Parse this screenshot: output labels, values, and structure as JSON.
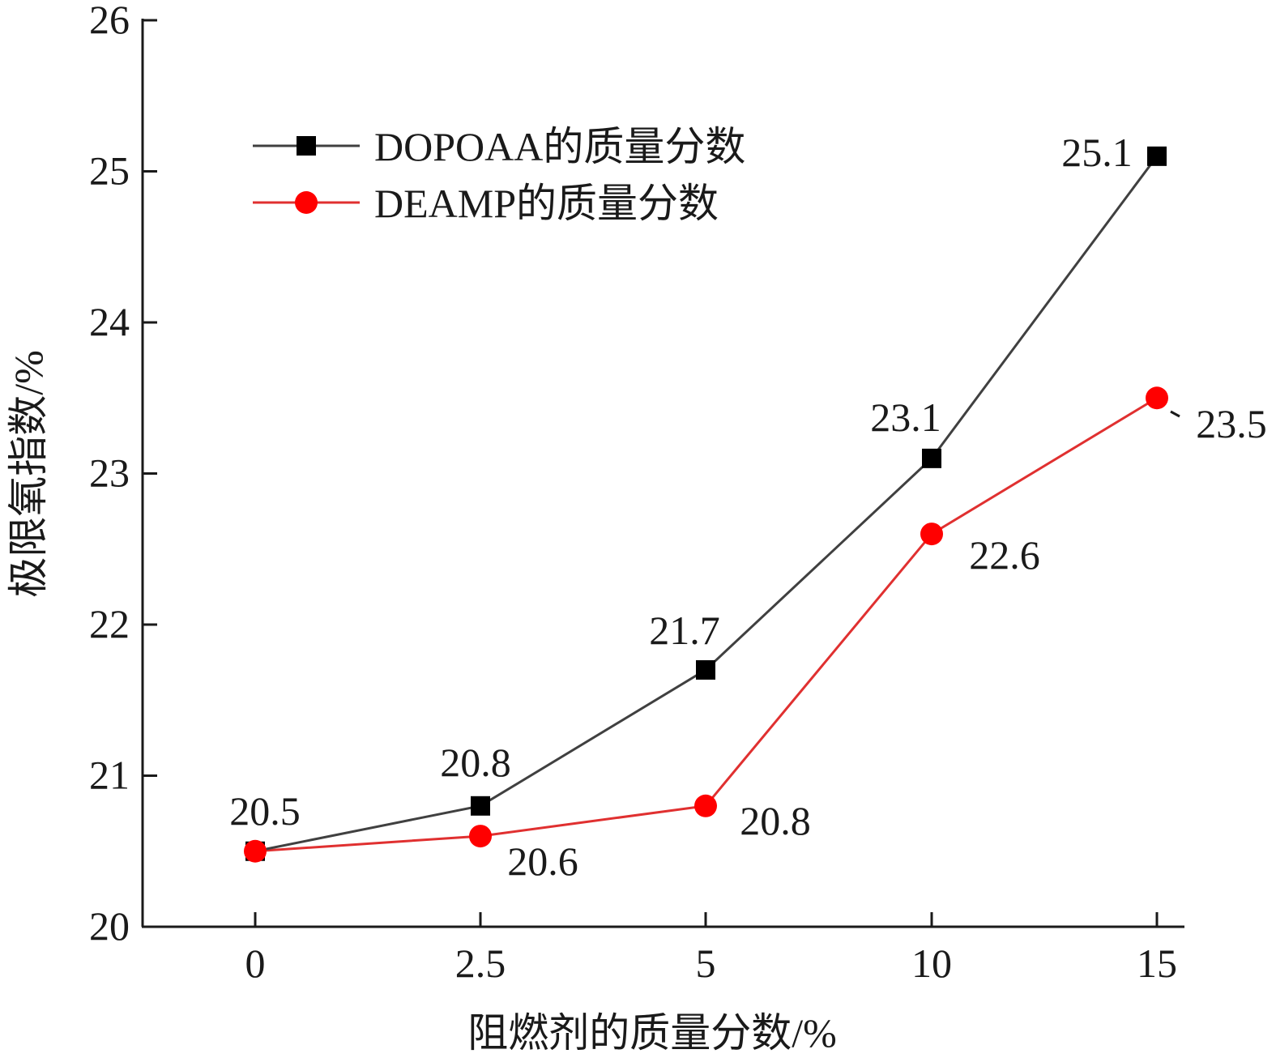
{
  "chart_data": {
    "type": "line",
    "categories": [
      "0",
      "2.5",
      "5",
      "10",
      "15"
    ],
    "xlabel": "阻燃剂的质量分数/%",
    "ylabel": "极限氧指数/%",
    "ylim": [
      20,
      26
    ],
    "yticks": [
      "20",
      "21",
      "22",
      "23",
      "24",
      "25",
      "26"
    ],
    "grid": false,
    "legend_position": "top-left",
    "series": [
      {
        "name": "DOPOAA的质量分数",
        "marker": "square",
        "color": "#404040",
        "marker_color": "#000000",
        "values": [
          20.5,
          20.8,
          21.7,
          23.1,
          25.1
        ],
        "labels": [
          "20.5",
          "20.8",
          "21.7",
          "23.1",
          "25.1"
        ]
      },
      {
        "name": "DEAMP的质量分数",
        "marker": "circle",
        "color": "#e03030",
        "marker_color": "#ff0000",
        "values": [
          20.5,
          20.6,
          20.8,
          22.6,
          23.5
        ],
        "labels": [
          "",
          "20.6",
          "20.8",
          "22.6",
          "23.5"
        ]
      }
    ]
  }
}
